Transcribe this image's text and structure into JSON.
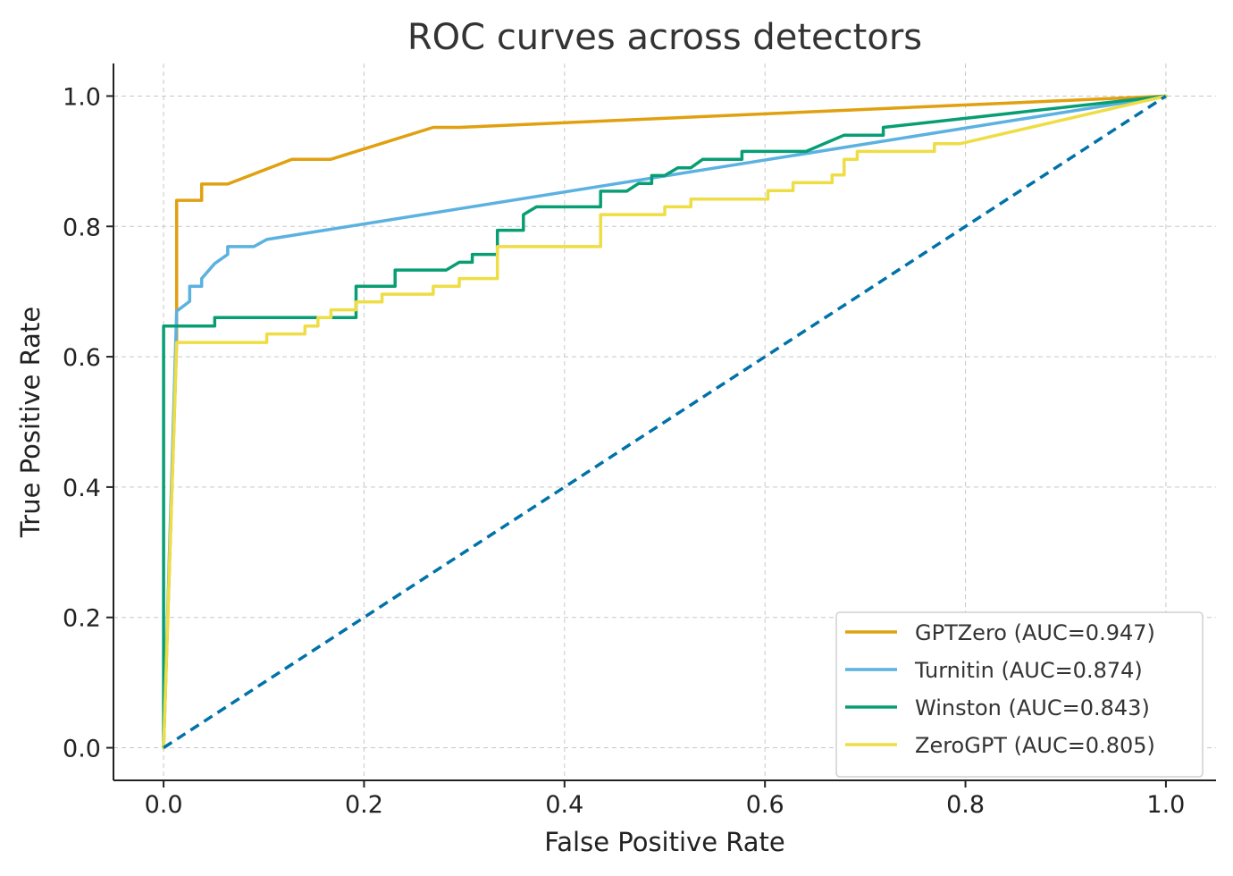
{
  "chart_data": {
    "type": "line",
    "title": "ROC curves across detectors",
    "xlabel": "False Positive Rate",
    "ylabel": "True Positive Rate",
    "xlim": [
      -0.05,
      1.05
    ],
    "ylim": [
      -0.05,
      1.05
    ],
    "xticks": [
      "0.0",
      "0.2",
      "0.4",
      "0.6",
      "0.8",
      "1.0"
    ],
    "yticks": [
      "0.0",
      "0.2",
      "0.4",
      "0.6",
      "0.8",
      "1.0"
    ],
    "grid": true,
    "legend_position": "lower-right",
    "series": [
      {
        "name": "GPTZero (AUC=0.947)",
        "color": "#E0A010",
        "style": "solid",
        "x": [
          0,
          0.013,
          0.013,
          0.038,
          0.038,
          0.064,
          0.128,
          0.167,
          0.269,
          0.295,
          1.0
        ],
        "y": [
          0,
          0.62,
          0.84,
          0.84,
          0.865,
          0.865,
          0.903,
          0.903,
          0.952,
          0.952,
          1.0
        ]
      },
      {
        "name": "Turnitin (AUC=0.874)",
        "color": "#5BB1E0",
        "style": "solid",
        "x": [
          0,
          0.013,
          0.026,
          0.026,
          0.038,
          0.038,
          0.051,
          0.064,
          0.064,
          0.09,
          0.103,
          1.0
        ],
        "y": [
          0,
          0.67,
          0.685,
          0.708,
          0.708,
          0.72,
          0.743,
          0.757,
          0.769,
          0.769,
          0.78,
          1.0
        ]
      },
      {
        "name": "Winston (AUC=0.843)",
        "color": "#089E74",
        "style": "solid",
        "x": [
          0,
          0,
          0.051,
          0.051,
          0.192,
          0.192,
          0.231,
          0.231,
          0.282,
          0.295,
          0.308,
          0.308,
          0.333,
          0.333,
          0.359,
          0.359,
          0.372,
          0.436,
          0.436,
          0.462,
          0.474,
          0.474,
          0.487,
          0.487,
          0.5,
          0.5,
          0.513,
          0.526,
          0.526,
          0.538,
          0.538,
          0.577,
          0.577,
          0.641,
          0.679,
          0.718,
          0.718,
          1.0
        ],
        "y": [
          0,
          0.647,
          0.647,
          0.66,
          0.66,
          0.708,
          0.708,
          0.733,
          0.733,
          0.745,
          0.745,
          0.757,
          0.757,
          0.794,
          0.794,
          0.818,
          0.83,
          0.83,
          0.854,
          0.854,
          0.866,
          0.866,
          0.866,
          0.878,
          0.878,
          0.878,
          0.89,
          0.89,
          0.89,
          0.903,
          0.903,
          0.903,
          0.915,
          0.915,
          0.94,
          0.94,
          0.952,
          1.0
        ]
      },
      {
        "name": "ZeroGPT (AUC=0.805)",
        "color": "#EEDD44",
        "style": "solid",
        "x": [
          0,
          0.013,
          0.103,
          0.103,
          0.141,
          0.141,
          0.154,
          0.154,
          0.167,
          0.167,
          0.192,
          0.192,
          0.218,
          0.218,
          0.269,
          0.269,
          0.295,
          0.295,
          0.333,
          0.333,
          0.436,
          0.436,
          0.5,
          0.5,
          0.526,
          0.526,
          0.603,
          0.603,
          0.628,
          0.628,
          0.667,
          0.667,
          0.679,
          0.679,
          0.692,
          0.692,
          0.769,
          0.769,
          0.795,
          1.0
        ],
        "y": [
          0,
          0.622,
          0.622,
          0.635,
          0.635,
          0.647,
          0.647,
          0.66,
          0.66,
          0.672,
          0.672,
          0.684,
          0.684,
          0.696,
          0.696,
          0.708,
          0.708,
          0.72,
          0.72,
          0.769,
          0.769,
          0.818,
          0.818,
          0.83,
          0.83,
          0.842,
          0.842,
          0.855,
          0.855,
          0.867,
          0.867,
          0.879,
          0.879,
          0.903,
          0.903,
          0.915,
          0.915,
          0.927,
          0.927,
          1.0
        ]
      },
      {
        "name": "",
        "color": "#0072A8",
        "style": "dashed",
        "x": [
          0,
          1
        ],
        "y": [
          0,
          1
        ]
      }
    ]
  }
}
